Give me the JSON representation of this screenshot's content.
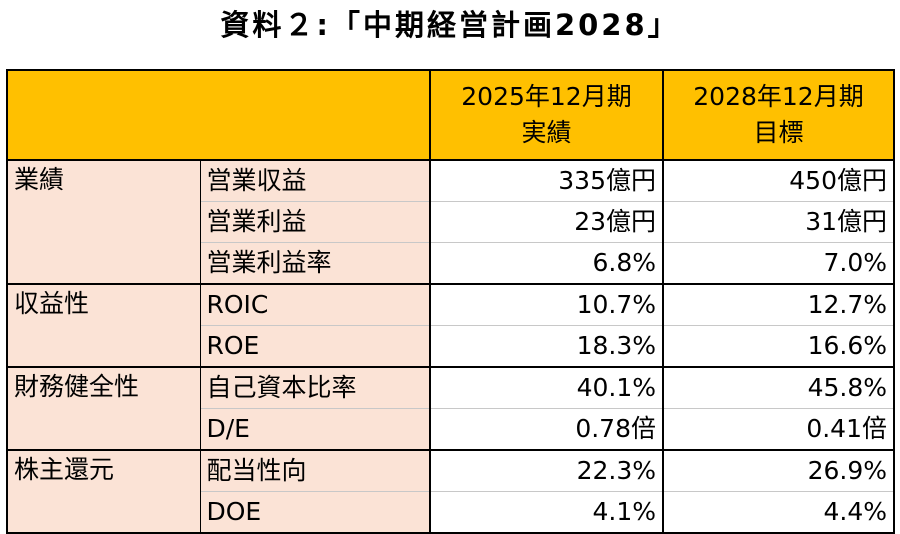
{
  "title": "資料２:「中期経営計画2028」",
  "table": {
    "header": {
      "col_actual_line1": "2025年12月期",
      "col_actual_line2": "実績",
      "col_target_line1": "2028年12月期",
      "col_target_line2": "目標"
    },
    "groups": [
      {
        "category": "業績",
        "rows": [
          {
            "item": "営業収益",
            "actual": "335億円",
            "target": "450億円"
          },
          {
            "item": "営業利益",
            "actual": "23億円",
            "target": "31億円"
          },
          {
            "item": "営業利益率",
            "actual": "6.8%",
            "target": "7.0%"
          }
        ]
      },
      {
        "category": "収益性",
        "rows": [
          {
            "item": "ROIC",
            "actual": "10.7%",
            "target": "12.7%"
          },
          {
            "item": "ROE",
            "actual": "18.3%",
            "target": "16.6%"
          }
        ]
      },
      {
        "category": "財務健全性",
        "rows": [
          {
            "item": "自己資本比率",
            "actual": "40.1%",
            "target": "45.8%"
          },
          {
            "item": "D/E",
            "actual": "0.78倍",
            "target": "0.41倍"
          }
        ]
      },
      {
        "category": "株主還元",
        "rows": [
          {
            "item": "配当性向",
            "actual": "22.3%",
            "target": "26.9%"
          },
          {
            "item": "DOE",
            "actual": "4.1%",
            "target": "4.4%"
          }
        ]
      }
    ]
  },
  "colors": {
    "header_bg": "#ffc000",
    "label_bg": "#fbe3d6",
    "value_bg": "#ffffff",
    "border": "#000000"
  }
}
